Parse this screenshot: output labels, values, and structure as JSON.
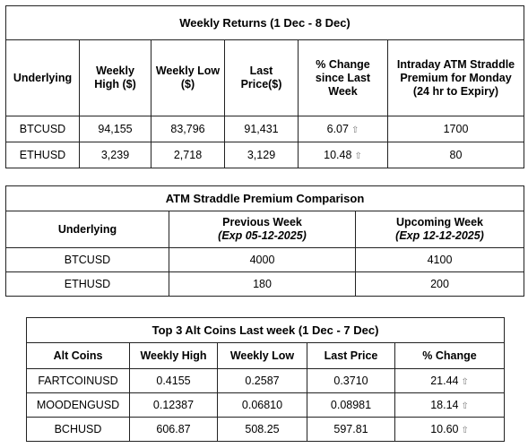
{
  "weekly_returns": {
    "title": "Weekly Returns (1 Dec - 8 Dec)",
    "headers": [
      "Underlying",
      "Weekly High ($)",
      "Weekly Low ($)",
      "Last Price($)",
      "% Change since Last Week",
      "Intraday ATM Straddle Premium for Monday (24 hr to Expiry)"
    ],
    "rows": [
      [
        "BTCUSD",
        "94,155",
        "83,796",
        "91,431",
        "6.07",
        "1700"
      ],
      [
        "ETHUSD",
        "3,239",
        "2,718",
        "3,129",
        "10.48",
        "80"
      ]
    ],
    "change_icon": "up-arrow-icon"
  },
  "straddle": {
    "title": "ATM Straddle Premium Comparison",
    "headers": [
      "Underlying",
      "Previous Week",
      "Upcoming Week"
    ],
    "subheaders": [
      "(Exp 05-12-2025)",
      "(Exp 12-12-2025)"
    ],
    "rows": [
      [
        "BTCUSD",
        "4000",
        "4100"
      ],
      [
        "ETHUSD",
        "180",
        "200"
      ]
    ]
  },
  "alt_coins": {
    "title": "Top 3 Alt Coins Last week (1 Dec - 7 Dec)",
    "headers": [
      "Alt Coins",
      "Weekly High",
      "Weekly Low",
      "Last Price",
      "% Change"
    ],
    "rows": [
      [
        "FARTCOINUSD",
        "0.4155",
        "0.2587",
        "0.3710",
        "21.44"
      ],
      [
        "MOODENGUSD",
        "0.12387",
        "0.06810",
        "0.08981",
        "18.14"
      ],
      [
        "BCHUSD",
        "606.87",
        "508.25",
        "597.81",
        "10.60"
      ]
    ],
    "change_icon": "up-arrow-icon"
  },
  "colors": {
    "border": "#222222",
    "arrow": "#777777"
  }
}
